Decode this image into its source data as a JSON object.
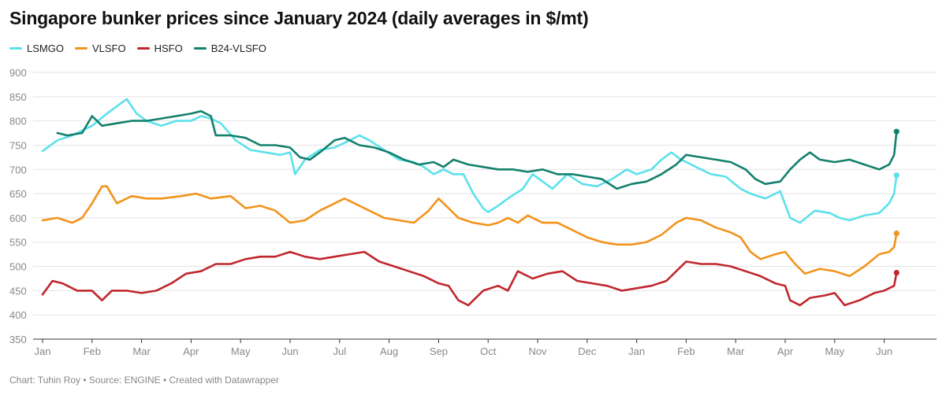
{
  "chart_data": {
    "type": "line",
    "title": "Singapore bunker prices since January 2024 (daily averages in $/mt)",
    "footer": "Chart: Tuhin Roy • Source: ENGINE • Created with Datawrapper",
    "ylim": [
      350,
      900
    ],
    "y_ticks": [
      "900",
      "850",
      "800",
      "750",
      "700",
      "650",
      "600",
      "550",
      "500",
      "450",
      "400",
      "350"
    ],
    "x_ticks": [
      "Jan",
      "Feb",
      "Mar",
      "Apr",
      "May",
      "Jun",
      "Jul",
      "Aug",
      "Sep",
      "Oct",
      "Nov",
      "Dec",
      "Jan",
      "Feb",
      "Mar",
      "Apr",
      "May",
      "Jun"
    ],
    "grid": true,
    "legend_position": "top-left",
    "x_unit": "month index (0 = early Jan 2024)",
    "series": [
      {
        "name": "LSMGO",
        "color": "#5ce1eb",
        "points": [
          [
            0,
            738
          ],
          [
            0.3,
            760
          ],
          [
            0.6,
            770
          ],
          [
            1,
            790
          ],
          [
            1.3,
            815
          ],
          [
            1.5,
            830
          ],
          [
            1.7,
            845
          ],
          [
            1.9,
            815
          ],
          [
            2.1,
            800
          ],
          [
            2.4,
            790
          ],
          [
            2.7,
            800
          ],
          [
            3,
            800
          ],
          [
            3.2,
            810
          ],
          [
            3.4,
            805
          ],
          [
            3.6,
            795
          ],
          [
            3.9,
            760
          ],
          [
            4.2,
            740
          ],
          [
            4.5,
            735
          ],
          [
            4.8,
            730
          ],
          [
            5,
            735
          ],
          [
            5.1,
            690
          ],
          [
            5.3,
            720
          ],
          [
            5.6,
            740
          ],
          [
            5.9,
            745
          ],
          [
            6.2,
            760
          ],
          [
            6.4,
            770
          ],
          [
            6.6,
            760
          ],
          [
            6.9,
            740
          ],
          [
            7.2,
            720
          ],
          [
            7.5,
            715
          ],
          [
            7.7,
            705
          ],
          [
            7.9,
            690
          ],
          [
            8.1,
            700
          ],
          [
            8.3,
            690
          ],
          [
            8.5,
            690
          ],
          [
            8.7,
            650
          ],
          [
            8.9,
            620
          ],
          [
            9,
            612
          ],
          [
            9.2,
            625
          ],
          [
            9.4,
            640
          ],
          [
            9.7,
            660
          ],
          [
            9.9,
            690
          ],
          [
            10.1,
            675
          ],
          [
            10.3,
            660
          ],
          [
            10.6,
            690
          ],
          [
            10.9,
            670
          ],
          [
            11.2,
            665
          ],
          [
            11.5,
            680
          ],
          [
            11.8,
            700
          ],
          [
            12,
            690
          ],
          [
            12.3,
            700
          ],
          [
            12.5,
            720
          ],
          [
            12.7,
            735
          ],
          [
            12.9,
            720
          ],
          [
            13.1,
            710
          ],
          [
            13.3,
            700
          ],
          [
            13.5,
            690
          ],
          [
            13.8,
            685
          ],
          [
            14.1,
            660
          ],
          [
            14.3,
            650
          ],
          [
            14.6,
            640
          ],
          [
            14.9,
            655
          ],
          [
            15.1,
            600
          ],
          [
            15.3,
            590
          ],
          [
            15.6,
            615
          ],
          [
            15.9,
            610
          ],
          [
            16.1,
            600
          ],
          [
            16.3,
            595
          ],
          [
            16.6,
            605
          ],
          [
            16.9,
            610
          ],
          [
            17.1,
            630
          ],
          [
            17.2,
            650
          ],
          [
            17.25,
            688
          ]
        ]
      },
      {
        "name": "VLSFO",
        "color": "#f2931b",
        "points": [
          [
            0,
            595
          ],
          [
            0.3,
            600
          ],
          [
            0.6,
            590
          ],
          [
            0.8,
            600
          ],
          [
            1,
            630
          ],
          [
            1.2,
            665
          ],
          [
            1.3,
            665
          ],
          [
            1.5,
            630
          ],
          [
            1.8,
            645
          ],
          [
            2.1,
            640
          ],
          [
            2.4,
            640
          ],
          [
            2.8,
            645
          ],
          [
            3.1,
            650
          ],
          [
            3.4,
            640
          ],
          [
            3.8,
            645
          ],
          [
            4.1,
            620
          ],
          [
            4.4,
            625
          ],
          [
            4.7,
            615
          ],
          [
            5,
            590
          ],
          [
            5.3,
            595
          ],
          [
            5.6,
            615
          ],
          [
            5.9,
            630
          ],
          [
            6.1,
            640
          ],
          [
            6.3,
            630
          ],
          [
            6.6,
            615
          ],
          [
            6.9,
            600
          ],
          [
            7.2,
            595
          ],
          [
            7.5,
            590
          ],
          [
            7.8,
            615
          ],
          [
            8,
            640
          ],
          [
            8.2,
            620
          ],
          [
            8.4,
            600
          ],
          [
            8.7,
            590
          ],
          [
            9,
            585
          ],
          [
            9.2,
            590
          ],
          [
            9.4,
            600
          ],
          [
            9.6,
            590
          ],
          [
            9.8,
            605
          ],
          [
            10.1,
            590
          ],
          [
            10.4,
            590
          ],
          [
            10.7,
            575
          ],
          [
            11,
            560
          ],
          [
            11.3,
            550
          ],
          [
            11.6,
            545
          ],
          [
            11.9,
            545
          ],
          [
            12.2,
            550
          ],
          [
            12.5,
            565
          ],
          [
            12.8,
            590
          ],
          [
            13,
            600
          ],
          [
            13.3,
            595
          ],
          [
            13.6,
            580
          ],
          [
            13.9,
            570
          ],
          [
            14.1,
            560
          ],
          [
            14.3,
            530
          ],
          [
            14.5,
            515
          ],
          [
            14.8,
            525
          ],
          [
            15,
            530
          ],
          [
            15.2,
            505
          ],
          [
            15.4,
            485
          ],
          [
            15.7,
            495
          ],
          [
            16,
            490
          ],
          [
            16.3,
            480
          ],
          [
            16.6,
            500
          ],
          [
            16.9,
            525
          ],
          [
            17.1,
            530
          ],
          [
            17.2,
            540
          ],
          [
            17.25,
            568
          ]
        ]
      },
      {
        "name": "HSFO",
        "color": "#c0272d",
        "points": [
          [
            0,
            442
          ],
          [
            0.2,
            470
          ],
          [
            0.4,
            465
          ],
          [
            0.7,
            450
          ],
          [
            1,
            450
          ],
          [
            1.2,
            430
          ],
          [
            1.4,
            450
          ],
          [
            1.7,
            450
          ],
          [
            2,
            445
          ],
          [
            2.3,
            450
          ],
          [
            2.6,
            465
          ],
          [
            2.9,
            485
          ],
          [
            3.2,
            490
          ],
          [
            3.5,
            505
          ],
          [
            3.8,
            505
          ],
          [
            4.1,
            515
          ],
          [
            4.4,
            520
          ],
          [
            4.7,
            520
          ],
          [
            5,
            530
          ],
          [
            5.3,
            520
          ],
          [
            5.6,
            515
          ],
          [
            5.9,
            520
          ],
          [
            6.2,
            525
          ],
          [
            6.5,
            530
          ],
          [
            6.8,
            510
          ],
          [
            7.1,
            500
          ],
          [
            7.4,
            490
          ],
          [
            7.7,
            480
          ],
          [
            8,
            465
          ],
          [
            8.2,
            460
          ],
          [
            8.4,
            430
          ],
          [
            8.6,
            420
          ],
          [
            8.9,
            450
          ],
          [
            9.2,
            460
          ],
          [
            9.4,
            450
          ],
          [
            9.6,
            490
          ],
          [
            9.9,
            475
          ],
          [
            10.2,
            485
          ],
          [
            10.5,
            490
          ],
          [
            10.8,
            470
          ],
          [
            11.1,
            465
          ],
          [
            11.4,
            460
          ],
          [
            11.7,
            450
          ],
          [
            12,
            455
          ],
          [
            12.3,
            460
          ],
          [
            12.6,
            470
          ],
          [
            12.8,
            490
          ],
          [
            13,
            510
          ],
          [
            13.3,
            505
          ],
          [
            13.6,
            505
          ],
          [
            13.9,
            500
          ],
          [
            14.2,
            490
          ],
          [
            14.5,
            480
          ],
          [
            14.8,
            465
          ],
          [
            15,
            460
          ],
          [
            15.1,
            430
          ],
          [
            15.3,
            420
          ],
          [
            15.5,
            435
          ],
          [
            15.8,
            440
          ],
          [
            16,
            445
          ],
          [
            16.2,
            420
          ],
          [
            16.5,
            430
          ],
          [
            16.8,
            445
          ],
          [
            17,
            450
          ],
          [
            17.2,
            460
          ],
          [
            17.25,
            487
          ]
        ]
      },
      {
        "name": "B24-VLSFO",
        "color": "#12806c",
        "points": [
          [
            0.3,
            775
          ],
          [
            0.5,
            770
          ],
          [
            0.8,
            775
          ],
          [
            1,
            810
          ],
          [
            1.2,
            790
          ],
          [
            1.5,
            795
          ],
          [
            1.8,
            800
          ],
          [
            2.1,
            800
          ],
          [
            2.4,
            805
          ],
          [
            2.7,
            810
          ],
          [
            3,
            815
          ],
          [
            3.2,
            820
          ],
          [
            3.4,
            810
          ],
          [
            3.5,
            770
          ],
          [
            3.8,
            770
          ],
          [
            4.1,
            765
          ],
          [
            4.4,
            750
          ],
          [
            4.7,
            750
          ],
          [
            5,
            745
          ],
          [
            5.2,
            725
          ],
          [
            5.4,
            720
          ],
          [
            5.6,
            735
          ],
          [
            5.9,
            760
          ],
          [
            6.1,
            765
          ],
          [
            6.4,
            750
          ],
          [
            6.7,
            745
          ],
          [
            7,
            735
          ],
          [
            7.3,
            720
          ],
          [
            7.6,
            710
          ],
          [
            7.9,
            715
          ],
          [
            8.1,
            705
          ],
          [
            8.3,
            720
          ],
          [
            8.6,
            710
          ],
          [
            8.9,
            705
          ],
          [
            9.2,
            700
          ],
          [
            9.5,
            700
          ],
          [
            9.8,
            695
          ],
          [
            10.1,
            700
          ],
          [
            10.4,
            690
          ],
          [
            10.7,
            690
          ],
          [
            11,
            685
          ],
          [
            11.3,
            680
          ],
          [
            11.6,
            660
          ],
          [
            11.9,
            670
          ],
          [
            12.2,
            675
          ],
          [
            12.5,
            690
          ],
          [
            12.8,
            710
          ],
          [
            13,
            730
          ],
          [
            13.3,
            725
          ],
          [
            13.6,
            720
          ],
          [
            13.9,
            715
          ],
          [
            14.2,
            700
          ],
          [
            14.4,
            680
          ],
          [
            14.6,
            670
          ],
          [
            14.9,
            675
          ],
          [
            15.1,
            700
          ],
          [
            15.3,
            720
          ],
          [
            15.5,
            735
          ],
          [
            15.7,
            720
          ],
          [
            16,
            715
          ],
          [
            16.3,
            720
          ],
          [
            16.6,
            710
          ],
          [
            16.9,
            700
          ],
          [
            17.1,
            710
          ],
          [
            17.2,
            730
          ],
          [
            17.25,
            778
          ]
        ]
      }
    ]
  }
}
